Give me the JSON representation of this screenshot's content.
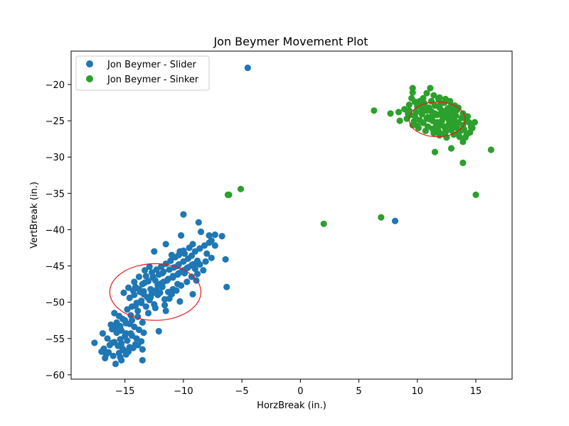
{
  "chart_data": {
    "type": "scatter",
    "title": "Jon Beymer Movement Plot",
    "xlabel": "HorzBreak (in.)",
    "ylabel": "VertBreak (in.)",
    "xlim": [
      -19.6,
      18.1
    ],
    "ylim": [
      -60.6,
      -15.4
    ],
    "xticks": [
      -15,
      -10,
      -5,
      0,
      5,
      10,
      15
    ],
    "yticks": [
      -60,
      -55,
      -50,
      -45,
      -40,
      -35,
      -30,
      -25,
      -20
    ],
    "xtick_labels": [
      "−15",
      "−10",
      "−5",
      "0",
      "5",
      "10",
      "15"
    ],
    "ytick_labels": [
      "−60",
      "−55",
      "−50",
      "−45",
      "−40",
      "−35",
      "−30",
      "−25",
      "−20"
    ],
    "grid": false,
    "legend_position": "upper-left",
    "series": [
      {
        "name": "Jon Beymer - Slider",
        "color": "#1f77b4",
        "points": [
          [
            -4.5,
            -17.7
          ],
          [
            8.1,
            -38.8
          ],
          [
            -10.0,
            -37.9
          ],
          [
            -8.7,
            -39.0
          ],
          [
            -17.6,
            -55.6
          ],
          [
            -6.3,
            -47.9
          ],
          [
            -6.4,
            -44.1
          ],
          [
            -6.7,
            -40.9
          ],
          [
            -9.2,
            -48.9
          ],
          [
            -13.5,
            -58.0
          ],
          [
            -15.8,
            -58.5
          ],
          [
            -16.7,
            -57.7
          ],
          [
            -15.3,
            -58.0
          ],
          [
            -12.1,
            -54.0
          ],
          [
            -11.5,
            -51.2
          ],
          [
            -13.5,
            -52.8
          ],
          [
            -10.5,
            -47.5
          ],
          [
            -8.5,
            -40.3
          ],
          [
            -7.8,
            -40.8
          ],
          [
            -7.6,
            -41.5
          ],
          [
            -7.3,
            -42.2
          ],
          [
            -8.0,
            -43.3
          ],
          [
            -7.6,
            -43.9
          ],
          [
            -8.1,
            -44.4
          ],
          [
            -8.6,
            -44.8
          ],
          [
            -9.0,
            -45.4
          ],
          [
            -8.8,
            -46.1
          ],
          [
            -9.3,
            -46.5
          ],
          [
            -9.7,
            -47.2
          ],
          [
            -10.2,
            -47.7
          ],
          [
            -10.9,
            -48.2
          ],
          [
            -11.3,
            -48.6
          ],
          [
            -11.8,
            -47.9
          ],
          [
            -12.3,
            -48.3
          ],
          [
            -12.7,
            -48.8
          ],
          [
            -13.1,
            -49.3
          ],
          [
            -13.6,
            -49.8
          ],
          [
            -14.0,
            -50.1
          ],
          [
            -14.4,
            -50.6
          ],
          [
            -14.8,
            -51.0
          ],
          [
            -12.5,
            -50.3
          ],
          [
            -12.9,
            -49.7
          ],
          [
            -13.4,
            -48.9
          ],
          [
            -13.8,
            -48.2
          ],
          [
            -14.1,
            -47.9
          ],
          [
            -13.5,
            -47.5
          ],
          [
            -13.0,
            -47.1
          ],
          [
            -12.6,
            -46.6
          ],
          [
            -12.1,
            -46.2
          ],
          [
            -11.7,
            -45.8
          ],
          [
            -11.2,
            -45.5
          ],
          [
            -10.8,
            -45.2
          ],
          [
            -10.4,
            -44.8
          ],
          [
            -10.0,
            -44.4
          ],
          [
            -9.6,
            -44.0
          ],
          [
            -9.3,
            -43.6
          ],
          [
            -9.9,
            -43.3
          ],
          [
            -10.3,
            -43.0
          ],
          [
            -10.7,
            -43.8
          ],
          [
            -11.1,
            -44.3
          ],
          [
            -11.5,
            -44.7
          ],
          [
            -11.9,
            -45.1
          ],
          [
            -12.3,
            -45.5
          ],
          [
            -12.7,
            -45.9
          ],
          [
            -13.2,
            -46.4
          ],
          [
            -12.4,
            -47.0
          ],
          [
            -11.9,
            -47.4
          ],
          [
            -11.4,
            -47.0
          ],
          [
            -10.9,
            -46.6
          ],
          [
            -10.5,
            -46.2
          ],
          [
            -10.1,
            -45.7
          ],
          [
            -9.7,
            -45.3
          ],
          [
            -9.3,
            -44.9
          ],
          [
            -8.9,
            -44.6
          ],
          [
            -8.3,
            -45.6
          ],
          [
            -8.9,
            -47.0
          ],
          [
            -9.9,
            -46.0
          ],
          [
            -10.5,
            -45.0
          ],
          [
            -11.0,
            -43.5
          ],
          [
            -11.5,
            -42.0
          ],
          [
            -12.5,
            -43.0
          ],
          [
            -12.9,
            -45.1
          ],
          [
            -13.3,
            -45.6
          ],
          [
            -13.8,
            -46.5
          ],
          [
            -14.2,
            -47.2
          ],
          [
            -14.7,
            -48.0
          ],
          [
            -15.1,
            -48.7
          ],
          [
            -14.6,
            -49.4
          ],
          [
            -14.2,
            -49.0
          ],
          [
            -13.7,
            -48.6
          ],
          [
            -12.2,
            -49.0
          ],
          [
            -11.6,
            -49.6
          ],
          [
            -11.0,
            -48.9
          ],
          [
            -10.6,
            -48.4
          ],
          [
            -12.4,
            -50.8
          ],
          [
            -13.0,
            -51.5
          ],
          [
            -13.9,
            -51.2
          ],
          [
            -14.5,
            -51.8
          ],
          [
            -15.2,
            -52.3
          ],
          [
            -15.7,
            -52.8
          ],
          [
            -16.2,
            -53.1
          ],
          [
            -15.8,
            -53.5
          ],
          [
            -15.3,
            -53.9
          ],
          [
            -14.9,
            -54.3
          ],
          [
            -14.4,
            -54.6
          ],
          [
            -14.0,
            -55.0
          ],
          [
            -13.6,
            -55.4
          ],
          [
            -14.1,
            -55.8
          ],
          [
            -14.6,
            -56.2
          ],
          [
            -15.1,
            -56.6
          ],
          [
            -15.5,
            -57.0
          ],
          [
            -16.0,
            -57.4
          ],
          [
            -16.4,
            -56.9
          ],
          [
            -16.8,
            -56.4
          ],
          [
            -16.3,
            -55.9
          ],
          [
            -15.9,
            -55.5
          ],
          [
            -15.4,
            -55.1
          ],
          [
            -15.0,
            -54.7
          ],
          [
            -14.5,
            -54.3
          ],
          [
            -16.9,
            -54.3
          ],
          [
            -16.5,
            -55.0
          ],
          [
            -16.1,
            -55.6
          ],
          [
            -15.6,
            -56.0
          ],
          [
            -15.2,
            -56.4
          ],
          [
            -14.7,
            -56.8
          ],
          [
            -14.3,
            -56.3
          ],
          [
            -13.9,
            -55.9
          ],
          [
            -13.5,
            -56.5
          ],
          [
            -14.9,
            -57.2
          ],
          [
            -15.4,
            -57.6
          ],
          [
            -16.6,
            -57.2
          ],
          [
            -17.0,
            -56.8
          ],
          [
            -15.9,
            -51.5
          ],
          [
            -15.5,
            -51.9
          ],
          [
            -15.0,
            -52.5
          ],
          [
            -14.6,
            -53.0
          ],
          [
            -14.2,
            -53.4
          ],
          [
            -13.8,
            -53.8
          ],
          [
            -13.4,
            -54.2
          ],
          [
            -14.8,
            -55.3
          ],
          [
            -15.3,
            -55.7
          ],
          [
            -15.7,
            -54.2
          ],
          [
            -16.1,
            -53.7
          ],
          [
            -13.2,
            -50.6
          ],
          [
            -13.6,
            -50.1
          ],
          [
            -14.1,
            -50.5
          ],
          [
            -13.9,
            -52.0
          ],
          [
            -14.4,
            -52.5
          ],
          [
            -14.9,
            -52.9
          ],
          [
            -15.4,
            -53.3
          ],
          [
            -12.8,
            -48.2
          ],
          [
            -12.2,
            -47.6
          ],
          [
            -11.7,
            -47.2
          ],
          [
            -11.3,
            -46.8
          ],
          [
            -10.9,
            -46.4
          ],
          [
            -10.4,
            -46.0
          ],
          [
            -10.0,
            -45.6
          ],
          [
            -9.6,
            -45.2
          ],
          [
            -9.2,
            -44.8
          ],
          [
            -8.8,
            -44.3
          ],
          [
            -9.5,
            -42.5
          ],
          [
            -10.0,
            -42.9
          ],
          [
            -10.4,
            -43.5
          ],
          [
            -9.0,
            -43.0
          ],
          [
            -8.6,
            -42.6
          ],
          [
            -8.2,
            -42.2
          ],
          [
            -7.8,
            -41.8
          ],
          [
            -7.3,
            -40.7
          ],
          [
            -10.2,
            -40.8
          ],
          [
            -9.2,
            -42.0
          ],
          [
            -11.8,
            -46.0
          ],
          [
            -12.6,
            -46.5
          ],
          [
            -13.3,
            -47.3
          ],
          [
            -12.0,
            -48.7
          ],
          [
            -11.2,
            -49.5
          ],
          [
            -10.3,
            -49.9
          ],
          [
            -11.6,
            -50.4
          ],
          [
            -12.8,
            -49.3
          ],
          [
            -13.4,
            -48.5
          ],
          [
            -14.3,
            -48.4
          ]
        ]
      },
      {
        "name": "Jon Beymer - Sinker",
        "color": "#2ca02c",
        "points": [
          [
            6.3,
            -23.6
          ],
          [
            7.7,
            -24.0
          ],
          [
            8.4,
            -23.8
          ],
          [
            8.5,
            -25.0
          ],
          [
            2.0,
            -39.2
          ],
          [
            6.9,
            -38.3
          ],
          [
            -6.1,
            -35.2
          ],
          [
            -6.2,
            -35.2
          ],
          [
            -5.1,
            -34.4
          ],
          [
            11.5,
            -29.3
          ],
          [
            12.9,
            -28.8
          ],
          [
            13.9,
            -30.8
          ],
          [
            15.0,
            -35.2
          ],
          [
            16.3,
            -29.0
          ],
          [
            14.5,
            -26.6
          ],
          [
            14.7,
            -26.0
          ],
          [
            14.9,
            -25.2
          ],
          [
            14.4,
            -25.2
          ],
          [
            13.9,
            -27.9
          ],
          [
            14.1,
            -27.3
          ],
          [
            9.6,
            -20.5
          ],
          [
            11.1,
            -20.5
          ],
          [
            10.8,
            -21.2
          ],
          [
            9.6,
            -21.1
          ],
          [
            9.5,
            -21.9
          ],
          [
            10.2,
            -22.3
          ],
          [
            10.5,
            -21.9
          ],
          [
            11.4,
            -21.5
          ],
          [
            11.9,
            -21.8
          ],
          [
            12.4,
            -22.0
          ],
          [
            12.8,
            -22.3
          ],
          [
            13.2,
            -22.9
          ],
          [
            13.5,
            -23.2
          ],
          [
            12.9,
            -23.6
          ],
          [
            12.4,
            -23.9
          ],
          [
            11.9,
            -24.1
          ],
          [
            11.3,
            -24.4
          ],
          [
            10.8,
            -24.7
          ],
          [
            10.2,
            -24.9
          ],
          [
            9.7,
            -25.1
          ],
          [
            9.1,
            -24.7
          ],
          [
            9.4,
            -24.2
          ],
          [
            9.9,
            -23.8
          ],
          [
            10.4,
            -23.5
          ],
          [
            11.0,
            -23.2
          ],
          [
            11.5,
            -22.9
          ],
          [
            12.0,
            -22.6
          ],
          [
            12.6,
            -24.5
          ],
          [
            13.1,
            -24.8
          ],
          [
            13.5,
            -25.2
          ],
          [
            13.9,
            -25.6
          ],
          [
            13.4,
            -26.0
          ],
          [
            12.9,
            -26.3
          ],
          [
            12.4,
            -26.6
          ],
          [
            11.8,
            -26.4
          ],
          [
            11.3,
            -26.1
          ],
          [
            10.9,
            -25.8
          ],
          [
            11.6,
            -25.4
          ],
          [
            12.1,
            -25.0
          ],
          [
            12.7,
            -25.5
          ],
          [
            13.2,
            -25.9
          ],
          [
            13.7,
            -26.4
          ],
          [
            14.2,
            -26.9
          ],
          [
            13.6,
            -27.2
          ],
          [
            13.1,
            -26.9
          ],
          [
            12.5,
            -27.3
          ],
          [
            11.9,
            -27.0
          ],
          [
            11.4,
            -26.7
          ],
          [
            10.7,
            -26.4
          ],
          [
            10.1,
            -26.0
          ],
          [
            9.6,
            -25.6
          ],
          [
            9.2,
            -24.0
          ],
          [
            8.9,
            -23.4
          ],
          [
            9.3,
            -22.8
          ],
          [
            9.8,
            -22.4
          ],
          [
            10.3,
            -22.8
          ],
          [
            10.7,
            -23.1
          ],
          [
            11.2,
            -23.7
          ],
          [
            11.7,
            -24.2
          ],
          [
            12.2,
            -24.6
          ],
          [
            12.7,
            -24.9
          ],
          [
            13.3,
            -24.3
          ],
          [
            13.8,
            -24.6
          ],
          [
            14.2,
            -25.0
          ],
          [
            14.6,
            -25.9
          ],
          [
            13.0,
            -25.1
          ],
          [
            12.3,
            -25.8
          ],
          [
            11.6,
            -26.0
          ],
          [
            10.9,
            -24.5
          ],
          [
            10.4,
            -24.1
          ],
          [
            9.8,
            -24.4
          ],
          [
            9.3,
            -23.6
          ],
          [
            10.0,
            -23.0
          ],
          [
            10.6,
            -22.6
          ],
          [
            11.2,
            -22.3
          ],
          [
            11.8,
            -22.0
          ],
          [
            12.3,
            -22.5
          ],
          [
            12.9,
            -22.9
          ],
          [
            13.4,
            -23.5
          ],
          [
            13.9,
            -24.0
          ],
          [
            14.3,
            -24.4
          ],
          [
            14.0,
            -26.2
          ],
          [
            13.5,
            -26.6
          ],
          [
            12.9,
            -25.7
          ],
          [
            12.4,
            -26.1
          ],
          [
            11.7,
            -25.2
          ],
          [
            11.1,
            -24.8
          ],
          [
            10.5,
            -25.3
          ],
          [
            10.0,
            -25.7
          ],
          [
            11.5,
            -24.0
          ],
          [
            12.1,
            -23.6
          ],
          [
            12.6,
            -23.3
          ],
          [
            13.0,
            -23.9
          ],
          [
            11.3,
            -25.0
          ],
          [
            12.0,
            -25.6
          ],
          [
            10.8,
            -23.6
          ],
          [
            11.9,
            -23.2
          ],
          [
            12.8,
            -24.1
          ],
          [
            13.3,
            -25.3
          ],
          [
            12.2,
            -26.8
          ]
        ]
      }
    ],
    "ellipses": [
      {
        "series": "Jon Beymer - Slider",
        "color": "#e31a1c",
        "cx": -12.4,
        "cy": -48.6,
        "rx": 3.9,
        "ry": 3.9
      },
      {
        "series": "Jon Beymer - Sinker",
        "color": "#e31a1c",
        "cx": 11.7,
        "cy": -24.8,
        "rx": 2.4,
        "ry": 2.4
      }
    ]
  }
}
